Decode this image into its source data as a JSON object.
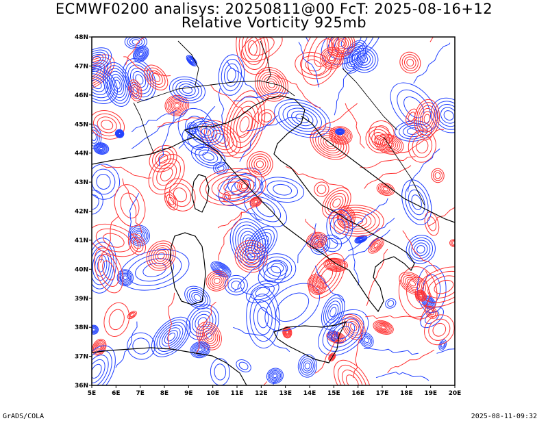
{
  "title_line1": "ECMWF0200 analisys: 20250811@00 FcT: 2025-08-16+12",
  "title_line2": "Relative Vorticity 925mb",
  "footer_left": "GrADS/COLA",
  "footer_right": "2025-08-11-09:32",
  "map": {
    "lon_range": [
      5,
      20
    ],
    "lat_range": [
      36,
      48
    ],
    "lon_labels": [
      "5E",
      "6E",
      "7E",
      "8E",
      "9E",
      "10E",
      "11E",
      "12E",
      "13E",
      "14E",
      "15E",
      "16E",
      "17E",
      "18E",
      "19E",
      "20E"
    ],
    "lat_labels": [
      "36N",
      "37N",
      "38N",
      "39N",
      "40N",
      "41N",
      "42N",
      "43N",
      "44N",
      "45N",
      "46N",
      "47N",
      "48N"
    ],
    "field": "Relative Vorticity",
    "level": "925mb",
    "positive_color": "#ff3030",
    "negative_color": "#2040ff",
    "coast_color": "#000000"
  }
}
